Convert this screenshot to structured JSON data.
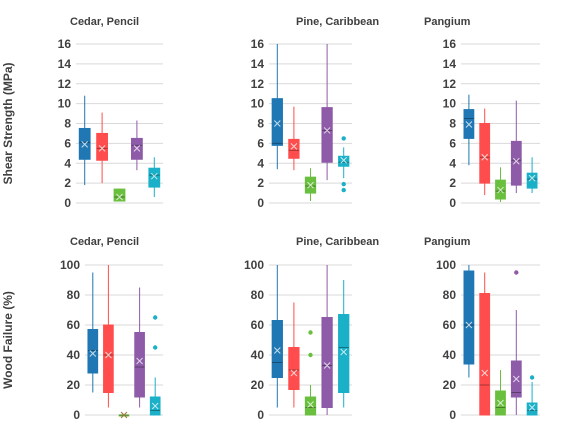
{
  "colors": [
    "#1f77b4",
    "#ff4d4d",
    "#6abf3f",
    "#8e5ba8",
    "#1ab0c8"
  ],
  "chart_data": [
    {
      "type": "box",
      "title": "Cedar, Pencil",
      "ylabel": "Shear Strength (MPa)",
      "ylim": [
        0,
        16
      ],
      "yticks": [
        0,
        2,
        4,
        6,
        8,
        10,
        12,
        14,
        16
      ],
      "boxes": [
        {
          "min": 1.8,
          "q1": 4.4,
          "median": 6.1,
          "q3": 7.5,
          "max": 10.8,
          "mean": 5.9,
          "outliers": []
        },
        {
          "min": 2.0,
          "q1": 4.3,
          "median": 5.5,
          "q3": 7.0,
          "max": 9.1,
          "mean": 5.5,
          "outliers": []
        },
        {
          "min": 0.2,
          "q1": 0.2,
          "median": 0.6,
          "q3": 1.4,
          "max": 1.4,
          "mean": 0.6,
          "outliers": []
        },
        {
          "min": 3.3,
          "q1": 4.4,
          "median": 5.8,
          "q3": 6.5,
          "max": 8.3,
          "mean": 5.5,
          "outliers": []
        },
        {
          "min": 0.6,
          "q1": 1.6,
          "median": 2.8,
          "q3": 3.5,
          "max": 4.6,
          "mean": 2.7,
          "outliers": []
        }
      ]
    },
    {
      "type": "box",
      "title": "Pine, Caribbean",
      "ylabel": "",
      "ylim": [
        0,
        16
      ],
      "yticks": [
        0,
        2,
        4,
        6,
        8,
        10,
        12,
        14,
        16
      ],
      "boxes": [
        {
          "min": 3.4,
          "q1": 5.8,
          "median": 6.0,
          "q3": 10.5,
          "max": 16.0,
          "mean": 8.0,
          "outliers": []
        },
        {
          "min": 3.3,
          "q1": 4.5,
          "median": 5.3,
          "q3": 6.4,
          "max": 9.7,
          "mean": 5.7,
          "outliers": []
        },
        {
          "min": 0.2,
          "q1": 1.0,
          "median": 1.7,
          "q3": 2.6,
          "max": 3.5,
          "mean": 1.8,
          "outliers": []
        },
        {
          "min": 2.3,
          "q1": 4.1,
          "median": 7.3,
          "q3": 9.6,
          "max": 16.0,
          "mean": 7.3,
          "outliers": []
        },
        {
          "min": 2.5,
          "q1": 3.7,
          "median": 4.1,
          "q3": 4.7,
          "max": 5.6,
          "mean": 4.3,
          "outliers": [
            6.5,
            1.9,
            1.3
          ]
        }
      ]
    },
    {
      "type": "box",
      "title": "Pangium",
      "ylabel": "",
      "ylim": [
        0,
        16
      ],
      "yticks": [
        0,
        2,
        4,
        6,
        8,
        10,
        12,
        14,
        16
      ],
      "boxes": [
        {
          "min": 3.8,
          "q1": 6.5,
          "median": 8.5,
          "q3": 9.4,
          "max": 10.9,
          "mean": 7.9,
          "outliers": []
        },
        {
          "min": 0.8,
          "q1": 2.0,
          "median": 4.6,
          "q3": 8.0,
          "max": 9.5,
          "mean": 4.6,
          "outliers": []
        },
        {
          "min": 0.1,
          "q1": 0.4,
          "median": 1.2,
          "q3": 2.3,
          "max": 3.6,
          "mean": 1.3,
          "outliers": []
        },
        {
          "min": 1.0,
          "q1": 1.8,
          "median": 4.3,
          "q3": 6.2,
          "max": 10.3,
          "mean": 4.2,
          "outliers": []
        },
        {
          "min": 1.0,
          "q1": 1.5,
          "median": 2.4,
          "q3": 3.0,
          "max": 4.6,
          "mean": 2.5,
          "outliers": []
        }
      ]
    },
    {
      "type": "box",
      "title": "Cedar, Pencil",
      "ylabel": "Wood Failure (%)",
      "ylim": [
        0,
        100
      ],
      "yticks": [
        0,
        20,
        40,
        60,
        80,
        100
      ],
      "boxes": [
        {
          "min": 15,
          "q1": 28,
          "median": 43,
          "q3": 57,
          "max": 95,
          "mean": 41,
          "outliers": []
        },
        {
          "min": 5,
          "q1": 15,
          "median": 40,
          "q3": 60,
          "max": 100,
          "mean": 40,
          "outliers": []
        },
        {
          "min": 0,
          "q1": 0,
          "median": 0,
          "q3": 0,
          "max": 0,
          "mean": 0,
          "outliers": []
        },
        {
          "min": 5,
          "q1": 12,
          "median": 32,
          "q3": 55,
          "max": 85,
          "mean": 36,
          "outliers": []
        },
        {
          "min": 0,
          "q1": 0,
          "median": 3,
          "q3": 12,
          "max": 25,
          "mean": 6,
          "outliers": [
            65,
            45
          ]
        }
      ]
    },
    {
      "type": "box",
      "title": "Pine, Caribbean",
      "ylabel": "",
      "ylim": [
        0,
        100
      ],
      "yticks": [
        0,
        20,
        40,
        60,
        80,
        100
      ],
      "boxes": [
        {
          "min": 5,
          "q1": 25,
          "median": 35,
          "q3": 63,
          "max": 100,
          "mean": 43,
          "outliers": []
        },
        {
          "min": 5,
          "q1": 17,
          "median": 30,
          "q3": 45,
          "max": 75,
          "mean": 28,
          "outliers": []
        },
        {
          "min": 0,
          "q1": 0,
          "median": 5,
          "q3": 12,
          "max": 20,
          "mean": 7,
          "outliers": [
            55,
            40
          ]
        },
        {
          "min": 0,
          "q1": 5,
          "median": 33,
          "q3": 65,
          "max": 100,
          "mean": 33,
          "outliers": []
        },
        {
          "min": 5,
          "q1": 15,
          "median": 45,
          "q3": 67,
          "max": 90,
          "mean": 42,
          "outliers": []
        }
      ]
    },
    {
      "type": "box",
      "title": "Pangium",
      "ylabel": "",
      "ylim": [
        0,
        100
      ],
      "yticks": [
        0,
        20,
        40,
        60,
        80,
        100
      ],
      "boxes": [
        {
          "min": 25,
          "q1": 34,
          "median": 60,
          "q3": 96,
          "max": 100,
          "mean": 60,
          "outliers": []
        },
        {
          "min": 0,
          "q1": 0,
          "median": 20,
          "q3": 81,
          "max": 95,
          "mean": 28,
          "outliers": []
        },
        {
          "min": 0,
          "q1": 0,
          "median": 5,
          "q3": 16,
          "max": 30,
          "mean": 8,
          "outliers": []
        },
        {
          "min": 0,
          "q1": 12,
          "median": 15,
          "q3": 36,
          "max": 70,
          "mean": 24,
          "outliers": [
            95
          ]
        },
        {
          "min": 0,
          "q1": 0,
          "median": 3,
          "q3": 8,
          "max": 22,
          "mean": 5,
          "outliers": [
            25
          ]
        }
      ]
    }
  ]
}
